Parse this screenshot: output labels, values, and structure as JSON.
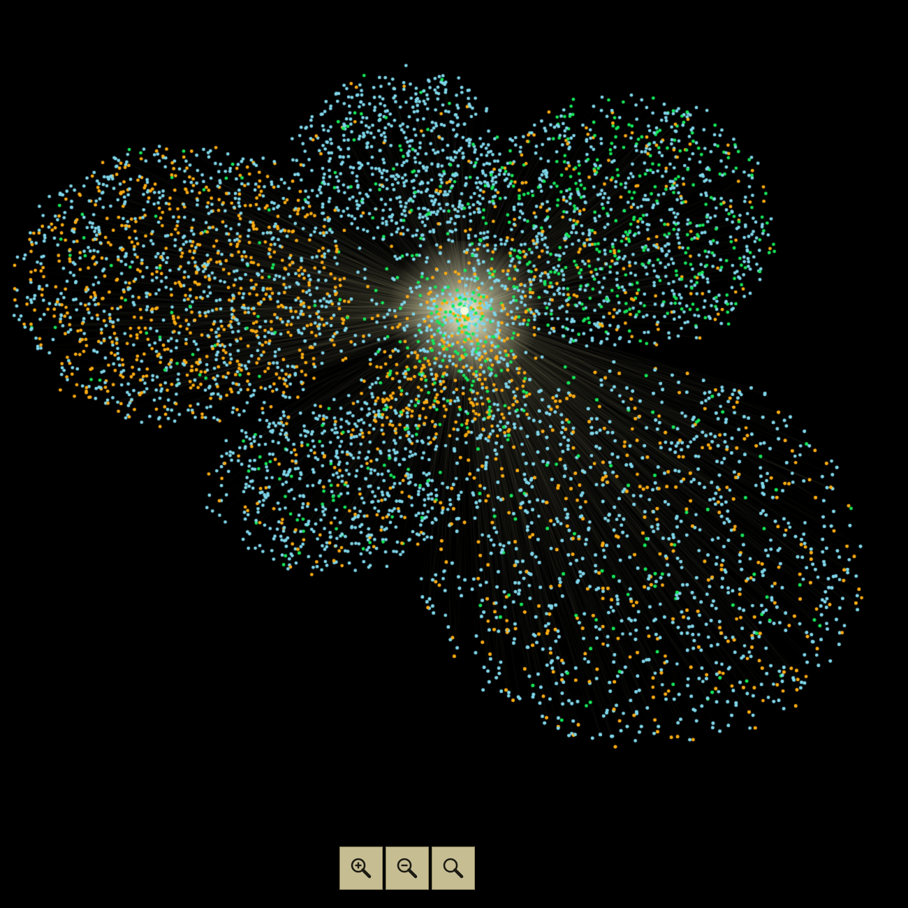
{
  "graph": {
    "background": "#000000",
    "hub_color": "#f6f7de",
    "edge_color": "#d2cba0",
    "node_categories": [
      {
        "color": "#7fd6ea",
        "icon": "node-dot"
      },
      {
        "color": "#ffad12",
        "icon": "node-dot"
      },
      {
        "color": "#15e85a",
        "icon": "node-dot"
      }
    ]
  },
  "controls": {
    "zoom_in": {
      "icon": "zoom-in-icon"
    },
    "zoom_out": {
      "icon": "zoom-out-icon"
    },
    "zoom_reset": {
      "icon": "zoom-reset-icon"
    },
    "button_background": "#c6bd93"
  }
}
